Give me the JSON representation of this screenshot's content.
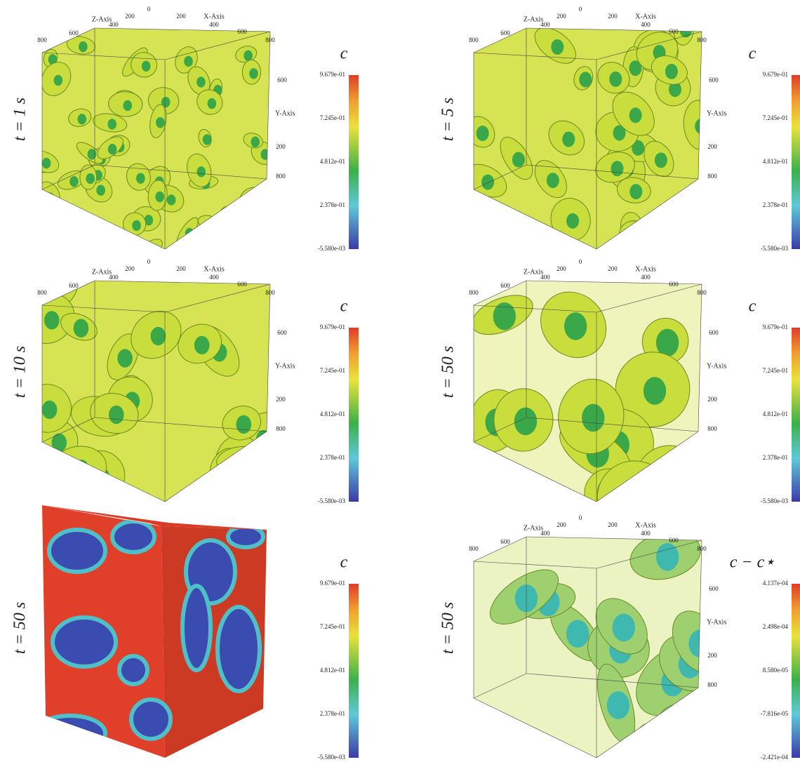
{
  "panels": [
    {
      "time_label": "t = 1 s",
      "colorbar": {
        "label": "c",
        "ticks": [
          "9.679e-01",
          "7.245e-01",
          "4.812e-01",
          "2.378e-01",
          "-5.580e-03"
        ]
      },
      "axes": {
        "x_label": "X-Axis",
        "y_label": "Y-Axis",
        "z_label": "Z-Axis",
        "ticks": [
          "0",
          "200",
          "400",
          "600",
          "800"
        ]
      }
    },
    {
      "time_label": "t = 5 s",
      "colorbar": {
        "label": "c",
        "ticks": [
          "9.679e-01",
          "7.245e-01",
          "4.812e-01",
          "2.378e-01",
          "-5.580e-03"
        ]
      },
      "axes": {
        "x_label": "X-Axis",
        "y_label": "Y-Axis",
        "z_label": "Z-Axis",
        "ticks": [
          "0",
          "200",
          "400",
          "600",
          "800"
        ]
      }
    },
    {
      "time_label": "t = 10 s",
      "colorbar": {
        "label": "c",
        "ticks": [
          "9.679e-01",
          "7.245e-01",
          "4.812e-01",
          "2.378e-01",
          "-5.580e-03"
        ]
      },
      "axes": {
        "x_label": "X-Axis",
        "y_label": "Y-Axis",
        "z_label": "Z-Axis",
        "ticks": [
          "0",
          "200",
          "400",
          "600",
          "800"
        ]
      }
    },
    {
      "time_label": "t = 50 s",
      "colorbar": {
        "label": "c",
        "ticks": [
          "9.679e-01",
          "7.245e-01",
          "4.812e-01",
          "2.378e-01",
          "-5.580e-03"
        ]
      },
      "axes": {
        "x_label": "X-Axis",
        "y_label": "Y-Axis",
        "z_label": "Z-Axis",
        "ticks": [
          "0",
          "200",
          "400",
          "600",
          "800"
        ]
      }
    },
    {
      "time_label": "t = 50 s",
      "colorbar": {
        "label": "c",
        "ticks": [
          "9.679e-01",
          "7.245e-01",
          "4.812e-01",
          "2.378e-01",
          "-5.580e-03"
        ]
      }
    },
    {
      "time_label": "t = 50 s",
      "colorbar": {
        "label": "c − c⋆",
        "ticks": [
          "4.137e-04",
          "2.498e-04",
          "8.580e-05",
          "-7.816e-05",
          "-2.421e-04"
        ]
      },
      "axes": {
        "x_label": "X-Axis",
        "y_label": "Y-Axis",
        "z_label": "Z-Axis",
        "ticks": [
          "0",
          "200",
          "400",
          "600",
          "800"
        ]
      }
    }
  ]
}
